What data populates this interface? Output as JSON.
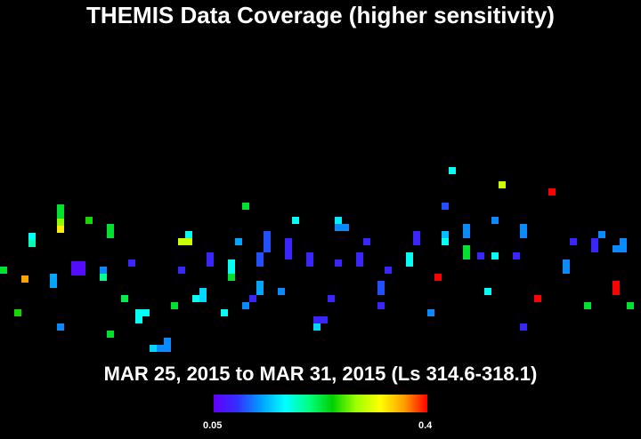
{
  "chart_data": {
    "type": "heatmap",
    "title": "THEMIS Data Coverage (higher sensitivity)",
    "subtitle": "MAR 25, 2015 to MAR 31, 2015 (Ls 314.6-318.1)",
    "colorbar": {
      "min_label": "0.05",
      "max_label": "0.4",
      "min": 0.05,
      "max": 0.4,
      "colors": [
        "#6000ff",
        "#3030ff",
        "#00a0ff",
        "#00ffff",
        "#00ff80",
        "#00d000",
        "#a0ff00",
        "#ffff00",
        "#ffa000",
        "#ff0000"
      ]
    },
    "cells": [
      [
        0,
        300,
        0.23
      ],
      [
        56,
        308,
        0.13
      ],
      [
        56,
        316,
        0.13
      ],
      [
        64,
        230,
        0.23
      ],
      [
        64,
        238,
        0.23
      ],
      [
        64,
        246,
        0.28
      ],
      [
        64,
        254,
        0.33
      ],
      [
        32,
        262,
        0.17
      ],
      [
        32,
        270,
        0.19
      ],
      [
        24,
        310,
        0.36
      ],
      [
        16,
        348,
        0.25
      ],
      [
        64,
        364,
        0.12
      ],
      [
        80,
        294,
        0.06
      ],
      [
        88,
        294,
        0.06
      ],
      [
        80,
        302,
        0.06
      ],
      [
        88,
        302,
        0.06
      ],
      [
        96,
        244,
        0.25
      ],
      [
        112,
        300,
        0.12
      ],
      [
        112,
        308,
        0.2
      ],
      [
        120,
        252,
        0.23
      ],
      [
        120,
        260,
        0.23
      ],
      [
        120,
        372,
        0.23
      ],
      [
        136,
        332,
        0.22
      ],
      [
        144,
        292,
        0.08
      ],
      [
        152,
        348,
        0.17
      ],
      [
        160,
        348,
        0.17
      ],
      [
        152,
        356,
        0.17
      ],
      [
        168,
        388,
        0.15
      ],
      [
        176,
        388,
        0.12
      ],
      [
        184,
        388,
        0.12
      ],
      [
        184,
        380,
        0.12
      ],
      [
        192,
        340,
        0.23
      ],
      [
        200,
        300,
        0.08
      ],
      [
        200,
        268,
        0.3
      ],
      [
        208,
        268,
        0.3
      ],
      [
        208,
        260,
        0.17
      ],
      [
        216,
        332,
        0.17
      ],
      [
        224,
        324,
        0.15
      ],
      [
        224,
        332,
        0.15
      ],
      [
        232,
        284,
        0.08
      ],
      [
        232,
        292,
        0.08
      ],
      [
        248,
        348,
        0.17
      ],
      [
        256,
        292,
        0.17
      ],
      [
        256,
        300,
        0.17
      ],
      [
        256,
        308,
        0.23
      ],
      [
        264,
        268,
        0.13
      ],
      [
        272,
        228,
        0.23
      ],
      [
        272,
        340,
        0.12
      ],
      [
        280,
        332,
        0.08
      ],
      [
        288,
        284,
        0.1
      ],
      [
        288,
        292,
        0.1
      ],
      [
        288,
        316,
        0.13
      ],
      [
        288,
        324,
        0.13
      ],
      [
        296,
        260,
        0.1
      ],
      [
        296,
        268,
        0.1
      ],
      [
        296,
        276,
        0.1
      ],
      [
        312,
        324,
        0.12
      ],
      [
        320,
        268,
        0.08
      ],
      [
        320,
        276,
        0.08
      ],
      [
        320,
        284,
        0.08
      ],
      [
        328,
        244,
        0.17
      ],
      [
        344,
        284,
        0.08
      ],
      [
        344,
        292,
        0.08
      ],
      [
        352,
        356,
        0.08
      ],
      [
        360,
        356,
        0.08
      ],
      [
        352,
        364,
        0.15
      ],
      [
        368,
        332,
        0.08
      ],
      [
        376,
        292,
        0.08
      ],
      [
        376,
        244,
        0.16
      ],
      [
        376,
        252,
        0.12
      ],
      [
        384,
        252,
        0.12
      ],
      [
        400,
        284,
        0.08
      ],
      [
        400,
        292,
        0.08
      ],
      [
        408,
        268,
        0.08
      ],
      [
        424,
        316,
        0.1
      ],
      [
        424,
        324,
        0.1
      ],
      [
        424,
        340,
        0.08
      ],
      [
        432,
        300,
        0.08
      ],
      [
        456,
        284,
        0.17
      ],
      [
        456,
        292,
        0.17
      ],
      [
        464,
        260,
        0.08
      ],
      [
        464,
        268,
        0.08
      ],
      [
        480,
        348,
        0.12
      ],
      [
        488,
        308,
        0.4
      ],
      [
        496,
        228,
        0.1
      ],
      [
        496,
        260,
        0.14
      ],
      [
        496,
        268,
        0.17
      ],
      [
        504,
        188,
        0.17
      ],
      [
        520,
        252,
        0.12
      ],
      [
        520,
        260,
        0.12
      ],
      [
        520,
        276,
        0.23
      ],
      [
        520,
        284,
        0.23
      ],
      [
        536,
        284,
        0.08
      ],
      [
        544,
        324,
        0.17
      ],
      [
        552,
        244,
        0.12
      ],
      [
        552,
        284,
        0.17
      ],
      [
        560,
        204,
        0.3
      ],
      [
        576,
        284,
        0.08
      ],
      [
        584,
        252,
        0.12
      ],
      [
        584,
        260,
        0.12
      ],
      [
        584,
        364,
        0.08
      ],
      [
        600,
        332,
        0.4
      ],
      [
        616,
        212,
        0.4
      ],
      [
        632,
        292,
        0.12
      ],
      [
        632,
        300,
        0.12
      ],
      [
        640,
        268,
        0.08
      ],
      [
        656,
        340,
        0.23
      ],
      [
        664,
        268,
        0.08
      ],
      [
        664,
        276,
        0.08
      ],
      [
        672,
        260,
        0.12
      ],
      [
        688,
        316,
        0.4
      ],
      [
        688,
        324,
        0.4
      ],
      [
        688,
        276,
        0.12
      ],
      [
        696,
        276,
        0.12
      ],
      [
        696,
        268,
        0.12
      ],
      [
        704,
        340,
        0.23
      ]
    ]
  }
}
